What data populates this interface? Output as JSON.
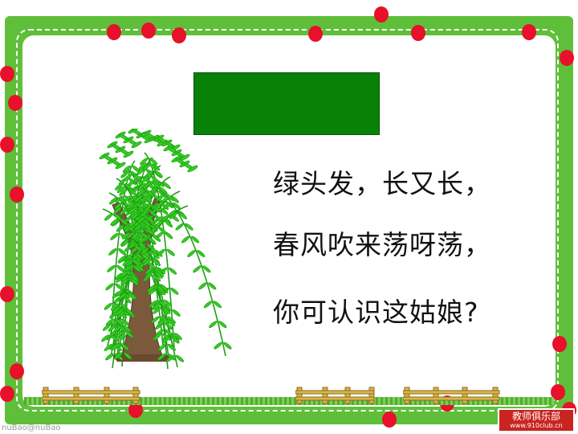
{
  "poem": {
    "line1": "绿头发，长又长，",
    "line2": "春风吹来荡呀荡，",
    "line3": "你可认识这姑娘?"
  },
  "logo": {
    "line1": "教师俱乐部",
    "line2": "www.910club.cn"
  },
  "watermark": "nuBao@nuBao",
  "colors": {
    "frame": "#5fbf3a",
    "title_box": "#078107",
    "dots": "#e8102a",
    "leaves": "#32c71e",
    "trunk": "#7a5a3a"
  }
}
